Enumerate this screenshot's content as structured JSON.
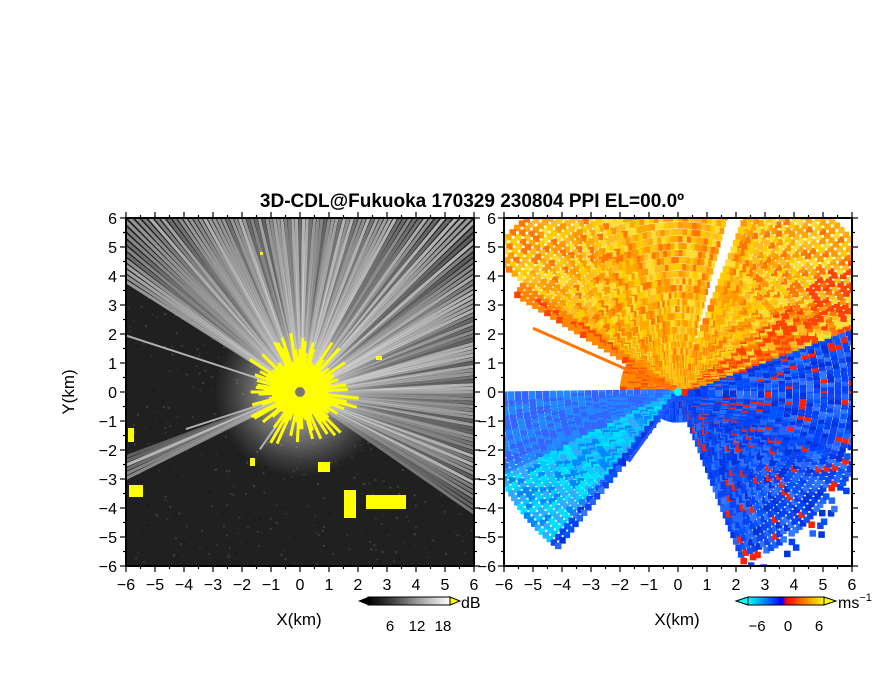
{
  "figure": {
    "title": "3D-CDL@Fukuoka 170329 230804 PPI EL=00.0º"
  },
  "chart_data": [
    {
      "type": "heatmap",
      "panel": "reflectivity",
      "xlabel": "X(km)",
      "ylabel": "Y(km)",
      "xlim": [
        -6,
        6
      ],
      "ylim": [
        -6,
        6
      ],
      "x_ticks": [
        "−6",
        "−5",
        "−4",
        "−3",
        "−2",
        "−1",
        "0",
        "1",
        "2",
        "3",
        "4",
        "5",
        "6"
      ],
      "y_ticks": [
        "6",
        "5",
        "4",
        "3",
        "2",
        "1",
        "0",
        "−1",
        "−2",
        "−3",
        "−4",
        "−5",
        "−6"
      ],
      "colorbar": {
        "unit": "dB",
        "tick_labels": [
          "6",
          "12",
          "18"
        ],
        "ticks": [
          6,
          12,
          18
        ],
        "colors": [
          "#000000",
          "#404040",
          "#808080",
          "#c0c0c0",
          "#ffffff"
        ],
        "overlay_color": "#ffff00"
      },
      "center": [
        0,
        0
      ],
      "grid": false
    },
    {
      "type": "heatmap",
      "panel": "doppler-velocity",
      "xlabel": "X(km)",
      "ylabel": "",
      "xlim": [
        -6,
        6
      ],
      "ylim": [
        -6,
        6
      ],
      "x_ticks": [
        "−6",
        "−5",
        "−4",
        "−3",
        "−2",
        "−1",
        "0",
        "1",
        "2",
        "3",
        "4",
        "5",
        "6"
      ],
      "y_ticks": [
        "6",
        "5",
        "4",
        "3",
        "2",
        "1",
        "0",
        "−1",
        "−2",
        "−3",
        "−4",
        "−5",
        "−6"
      ],
      "colorbar": {
        "unit": "ms",
        "unit_exponent": "−1",
        "tick_labels": [
          "−6",
          "0",
          "6"
        ],
        "ticks": [
          -6,
          0,
          6
        ],
        "colors": [
          "#00ffff",
          "#0080ff",
          "#0000ff",
          "#ff0000",
          "#ff8000",
          "#ffff00"
        ]
      },
      "center": [
        0,
        0
      ],
      "grid": false
    }
  ]
}
